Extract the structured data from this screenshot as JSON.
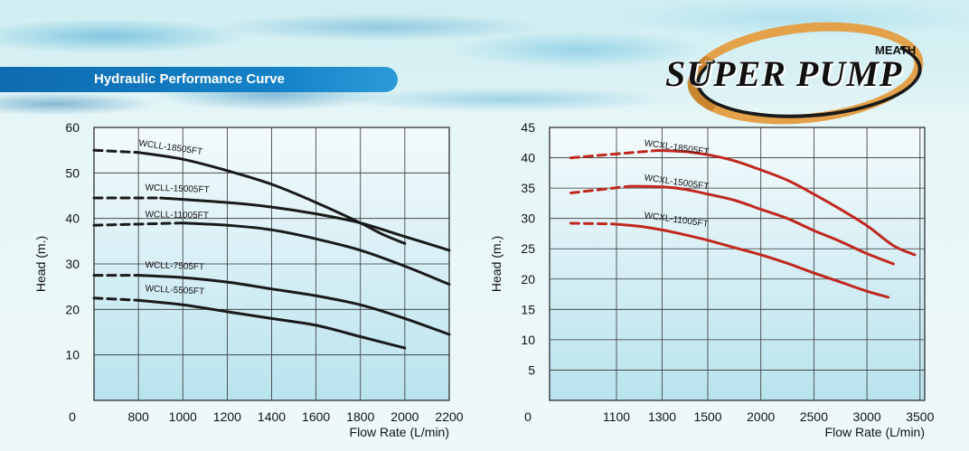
{
  "header": {
    "banner_title": "Hydraulic Performance Curve",
    "brand_top": "MEATH",
    "brand_name": "SUPER PUMP"
  },
  "colors": {
    "left_curve": "#1a1a1a",
    "right_curve": "#c0281e",
    "banner": "#1482c8",
    "grid": "#333333"
  },
  "chart_data": [
    {
      "type": "line",
      "title": "",
      "xlabel": "Flow Rate (L/min)",
      "ylabel": "Head (m.)",
      "x_ticks": [
        "0",
        "800",
        "1000",
        "1200",
        "1400",
        "1600",
        "1800",
        "2000",
        "2200"
      ],
      "y_ticks": [
        "60",
        "50",
        "40",
        "30",
        "20",
        "10"
      ],
      "origin_label": "0",
      "xlim": [
        600,
        2200
      ],
      "ylim": [
        0,
        60
      ],
      "x_tick_values": [
        800,
        1000,
        1200,
        1400,
        1600,
        1800,
        2000,
        2200
      ],
      "y_tick_values": [
        60,
        50,
        40,
        30,
        20,
        10
      ],
      "series": [
        {
          "name": "WCLL-18505FT",
          "dashed_x": [
            600,
            800
          ],
          "dashed_y": [
            55,
            54.5
          ],
          "x": [
            800,
            1000,
            1200,
            1400,
            1600,
            1800,
            1900,
            2000
          ],
          "y": [
            54.5,
            53,
            50.5,
            47.5,
            43.5,
            39,
            36.5,
            34.5
          ]
        },
        {
          "name": "WCLL-15005FT",
          "dashed_x": [
            600,
            900
          ],
          "dashed_y": [
            44.5,
            44.5
          ],
          "x": [
            900,
            1200,
            1400,
            1600,
            1800,
            2000,
            2200
          ],
          "y": [
            44.5,
            43.5,
            42.5,
            41,
            39,
            36,
            33
          ]
        },
        {
          "name": "WCLL-11005FT",
          "dashed_x": [
            600,
            1000
          ],
          "dashed_y": [
            38.5,
            39
          ],
          "x": [
            1000,
            1200,
            1400,
            1600,
            1800,
            2000,
            2200
          ],
          "y": [
            39,
            38.5,
            37.5,
            35.5,
            33,
            29.5,
            25.5
          ]
        },
        {
          "name": "WCLL-7505FT",
          "dashed_x": [
            600,
            800
          ],
          "dashed_y": [
            27.5,
            27.5
          ],
          "x": [
            800,
            1000,
            1200,
            1400,
            1600,
            1800,
            2000,
            2200
          ],
          "y": [
            27.5,
            27,
            26,
            24.5,
            23,
            21,
            18,
            14.5
          ]
        },
        {
          "name": "WCLL-5505FT",
          "dashed_x": [
            600,
            800
          ],
          "dashed_y": [
            22.5,
            22
          ],
          "x": [
            800,
            1000,
            1200,
            1400,
            1600,
            1800,
            2000
          ],
          "y": [
            22,
            21,
            19.5,
            18,
            16.5,
            14,
            11.5
          ]
        }
      ]
    },
    {
      "type": "line",
      "title": "",
      "xlabel": "Flow Rate (L/min)",
      "ylabel": "Head (m.)",
      "x_ticks": [
        "0",
        "1100",
        "1300",
        "1500",
        "2000",
        "2500",
        "3000",
        "3500"
      ],
      "y_ticks": [
        "45",
        "40",
        "35",
        "30",
        "25",
        "20",
        "15",
        "10",
        "5"
      ],
      "origin_label": "0",
      "x_scale": "piecewise",
      "x_tick_positions": [
        0,
        1,
        2,
        3,
        4,
        5,
        6,
        7
      ],
      "ylim": [
        0,
        45
      ],
      "y_tick_values": [
        45,
        40,
        35,
        30,
        25,
        20,
        15,
        10,
        5
      ],
      "series": [
        {
          "name": "WCXL-18505FT",
          "dashed_x": [
            0,
            1.9
          ],
          "dashed_y": [
            40,
            41.2
          ],
          "x": [
            1.9,
            2.5,
            3,
            3.5,
            4,
            4.5,
            5,
            5.5,
            6,
            6.5,
            6.9
          ],
          "y": [
            41.2,
            41,
            40.5,
            39.5,
            38,
            36.3,
            34,
            31.5,
            28.8,
            25.5,
            24
          ]
        },
        {
          "name": "WCXL-15005FT",
          "dashed_x": [
            0,
            1.3
          ],
          "dashed_y": [
            34.2,
            35.3
          ],
          "x": [
            1.3,
            2,
            2.5,
            3,
            3.5,
            4,
            4.5,
            5,
            5.5,
            6,
            6.5
          ],
          "y": [
            35.3,
            35.2,
            34.8,
            34,
            33,
            31.5,
            30,
            28,
            26.2,
            24.2,
            22.5
          ]
        },
        {
          "name": "WCXL-11005FT",
          "dashed_x": [
            0,
            0.9
          ],
          "dashed_y": [
            29.2,
            29.1
          ],
          "x": [
            0.9,
            1.5,
            2,
            2.5,
            3,
            3.5,
            4,
            4.5,
            5,
            5.5,
            6,
            6.4
          ],
          "y": [
            29.1,
            28.7,
            28.1,
            27.3,
            26.4,
            25.2,
            24,
            22.6,
            21,
            19.5,
            18,
            17
          ]
        }
      ]
    }
  ]
}
